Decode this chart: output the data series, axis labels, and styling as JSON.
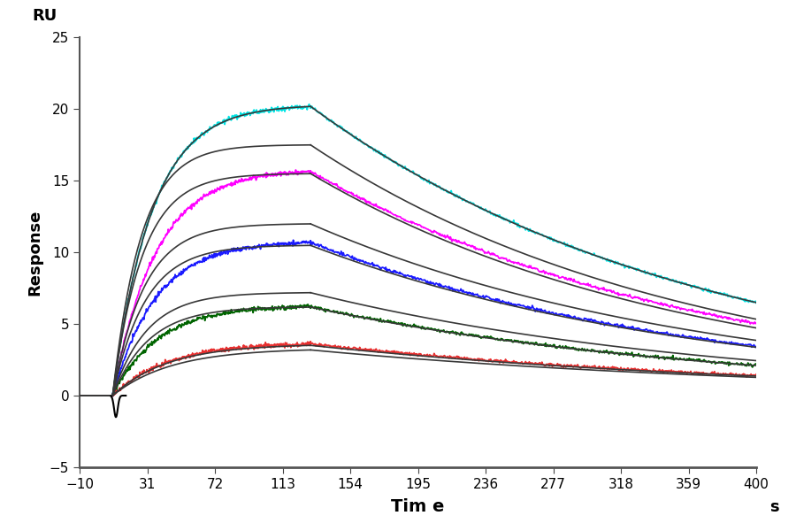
{
  "xlabel": "Tim e",
  "ylabel": "Response",
  "ru_label": "RU",
  "s_label": "s",
  "xlim": [
    -10,
    400
  ],
  "ylim": [
    -5,
    25
  ],
  "xticks": [
    -10,
    31,
    72,
    113,
    154,
    195,
    236,
    277,
    318,
    359,
    400
  ],
  "yticks": [
    -5,
    0,
    5,
    10,
    15,
    20,
    25
  ],
  "background_color": "#ffffff",
  "start_time": -10,
  "inject_time": 10,
  "association_end_time": 130,
  "dissociation_end_time": 400,
  "curves": [
    {
      "data_color": "#00e5e5",
      "fit_color": "#404040",
      "Rmax": 20.3,
      "ka": 0.042,
      "kd": 0.0042,
      "dissoc_end_val": 6.5
    },
    {
      "data_color": "#ff00ff",
      "fit_color": "#404040",
      "Rmax": 15.8,
      "ka": 0.038,
      "kd": 0.0042,
      "dissoc_end_val": 5.8
    },
    {
      "data_color": "#1a1aff",
      "fit_color": "#404040",
      "Rmax": 10.8,
      "ka": 0.038,
      "kd": 0.0042,
      "dissoc_end_val": 4.8
    },
    {
      "data_color": "#006400",
      "fit_color": "#404040",
      "Rmax": 6.3,
      "ka": 0.036,
      "kd": 0.004,
      "dissoc_end_val": 3.2
    },
    {
      "data_color": "#e83030",
      "fit_color": "#404040",
      "Rmax": 3.7,
      "ka": 0.03,
      "kd": 0.0035,
      "dissoc_end_val": 1.8
    }
  ],
  "black_curves": [
    {
      "Rmax": 17.5,
      "ka": 0.055,
      "kd": 0.0042,
      "dissoc_end_val": 5.5
    },
    {
      "Rmax": 12.0,
      "ka": 0.052,
      "kd": 0.0042,
      "dissoc_end_val": 4.5
    },
    {
      "Rmax": 7.2,
      "ka": 0.048,
      "kd": 0.004,
      "dissoc_end_val": 3.5
    },
    {
      "Rmax": 3.5,
      "ka": 0.03,
      "kd": 0.0035,
      "dissoc_end_val": 1.5
    }
  ]
}
